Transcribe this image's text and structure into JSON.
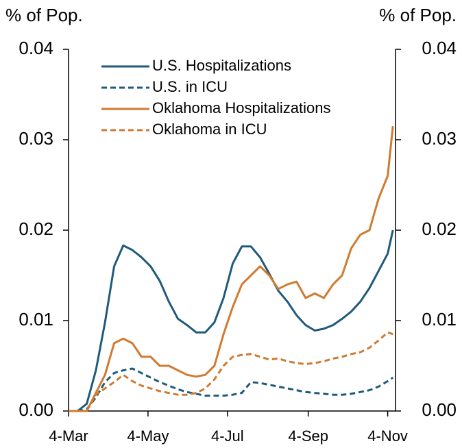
{
  "chart_data": {
    "type": "line",
    "y_label": "% of Pop.",
    "y2_label": "% of Pop.",
    "x": [
      "4-Mar",
      "11-Mar",
      "18-Mar",
      "25-Mar",
      "1-Apr",
      "8-Apr",
      "15-Apr",
      "22-Apr",
      "29-Apr",
      "6-May",
      "13-May",
      "20-May",
      "27-May",
      "3-Jun",
      "10-Jun",
      "17-Jun",
      "24-Jun",
      "1-Jul",
      "8-Jul",
      "15-Jul",
      "22-Jul",
      "29-Jul",
      "5-Aug",
      "12-Aug",
      "19-Aug",
      "26-Aug",
      "2-Sep",
      "9-Sep",
      "16-Sep",
      "23-Sep",
      "30-Sep",
      "7-Oct",
      "14-Oct",
      "21-Oct",
      "28-Oct",
      "4-Nov",
      "8-Nov"
    ],
    "xlim": [
      "4-Mar",
      "10-Nov"
    ],
    "xticks": [
      "4-Mar",
      "4-May",
      "4-Jul",
      "4-Sep",
      "4-Nov"
    ],
    "ylim": [
      0,
      0.04
    ],
    "yticks": [
      {
        "value": 0,
        "label": "0.00"
      },
      0.01,
      0.02,
      0.03,
      0.04
    ],
    "y2lim": [
      0,
      0.04
    ],
    "y2ticks": [
      {
        "value": 0,
        "label": "0.00"
      },
      0.01,
      0.02,
      0.03,
      0.04
    ],
    "series": [
      {
        "name": "U.S. Hospitalizations",
        "color": "#1f5a7a",
        "dash": false,
        "values": [
          0,
          0,
          0.0008,
          0.0045,
          0.0098,
          0.016,
          0.0183,
          0.0178,
          0.017,
          0.016,
          0.0144,
          0.0121,
          0.0102,
          0.0095,
          0.0087,
          0.0087,
          0.0098,
          0.0125,
          0.0163,
          0.0182,
          0.0182,
          0.017,
          0.0152,
          0.0133,
          0.0121,
          0.0106,
          0.0095,
          0.0089,
          0.0091,
          0.0095,
          0.0102,
          0.011,
          0.0121,
          0.0136,
          0.0155,
          0.0174,
          0.02
        ]
      },
      {
        "name": "U.S. in ICU",
        "color": "#1f5a7a",
        "dash": true,
        "values": [
          0,
          0,
          0.0002,
          0.0015,
          0.0032,
          0.0042,
          0.0045,
          0.0047,
          0.0042,
          0.0037,
          0.0032,
          0.0028,
          0.0024,
          0.0021,
          0.0019,
          0.0017,
          0.0017,
          0.0017,
          0.0018,
          0.002,
          0.0032,
          0.0031,
          0.0029,
          0.0027,
          0.0025,
          0.0023,
          0.0021,
          0.002,
          0.0019,
          0.0018,
          0.0018,
          0.0019,
          0.0021,
          0.0023,
          0.0027,
          0.0033,
          0.0037
        ]
      },
      {
        "name": "Oklahoma Hospitalizations",
        "color": "#d07a30",
        "dash": false,
        "values": [
          0,
          0,
          0,
          0.002,
          0.004,
          0.0075,
          0.008,
          0.0075,
          0.006,
          0.006,
          0.005,
          0.005,
          0.0045,
          0.004,
          0.0038,
          0.004,
          0.005,
          0.0085,
          0.0115,
          0.014,
          0.015,
          0.016,
          0.015,
          0.0135,
          0.014,
          0.0143,
          0.0125,
          0.013,
          0.0125,
          0.014,
          0.015,
          0.018,
          0.0195,
          0.02,
          0.0235,
          0.026,
          0.0315
        ]
      },
      {
        "name": "Oklahoma in ICU",
        "color": "#d07a30",
        "dash": true,
        "values": [
          0,
          0,
          0,
          0.0018,
          0.0025,
          0.0032,
          0.004,
          0.0033,
          0.0028,
          0.0025,
          0.0022,
          0.002,
          0.0018,
          0.0018,
          0.002,
          0.0025,
          0.0035,
          0.005,
          0.006,
          0.0062,
          0.0063,
          0.006,
          0.0057,
          0.0058,
          0.0055,
          0.0053,
          0.0052,
          0.0053,
          0.0055,
          0.0058,
          0.006,
          0.0063,
          0.0065,
          0.007,
          0.0078,
          0.0087,
          0.0085
        ]
      }
    ]
  }
}
